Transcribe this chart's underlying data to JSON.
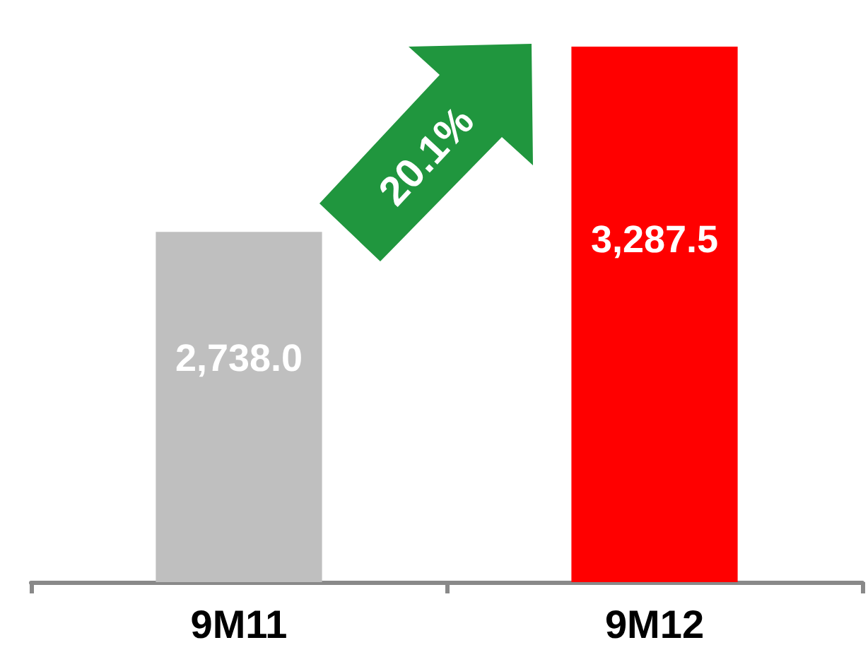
{
  "chart_data": {
    "type": "bar",
    "categories": [
      "9M11",
      "9M12"
    ],
    "values": [
      2738.0,
      3287.5
    ],
    "colors": [
      "#bfbfbf",
      "#ff0000"
    ],
    "value_labels": [
      "2,738.0",
      "3,287.5"
    ],
    "ylim": [
      1700,
      3300
    ],
    "tick_labels": "x",
    "annotations": [
      "20.1%"
    ]
  }
}
